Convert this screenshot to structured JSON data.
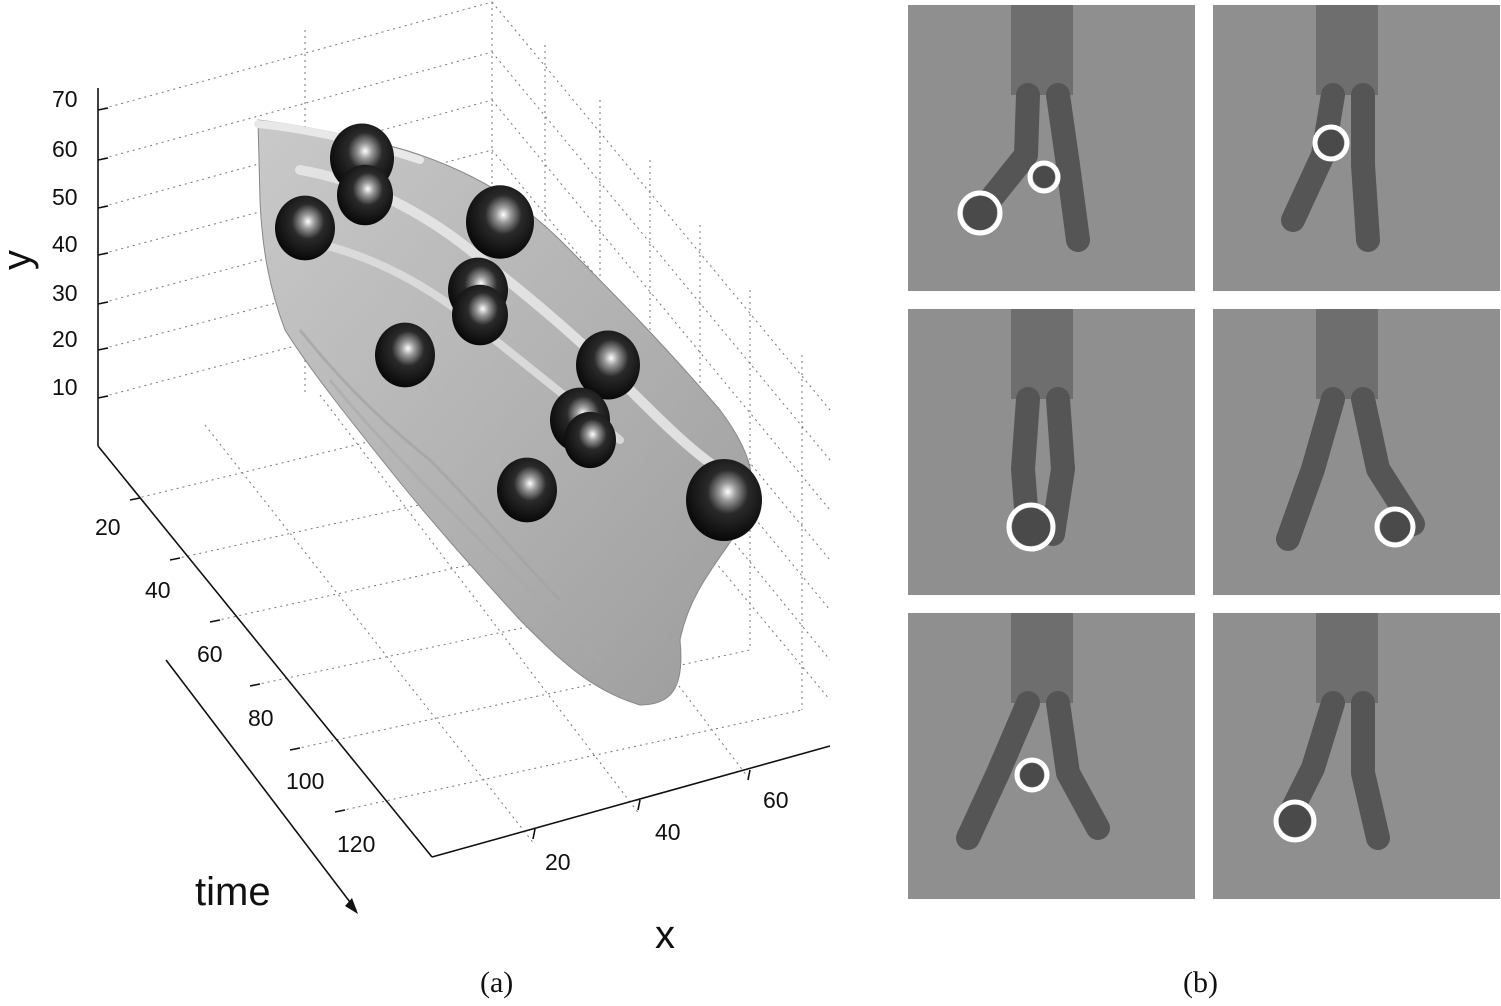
{
  "chart_data": {
    "type": "surface3d",
    "panel_a": {
      "axes": {
        "y": {
          "label": "y",
          "ticks": [
            "10",
            "20",
            "30",
            "40",
            "50",
            "60",
            "70"
          ]
        },
        "time": {
          "label": "time",
          "ticks": [
            "20",
            "40",
            "60",
            "80",
            "100",
            "120"
          ]
        },
        "x": {
          "label": "x",
          "ticks": [
            "20",
            "40",
            "60"
          ]
        }
      },
      "grid": true,
      "surface_color": "#b8b8b8",
      "marker_color": "#141414",
      "marker_count": 12
    },
    "panel_b": {
      "frames": [
        {
          "circles": 2
        },
        {
          "circles": 1
        },
        {
          "circles": 1
        },
        {
          "circles": 1
        },
        {
          "circles": 1
        },
        {
          "circles": 1
        }
      ],
      "circle_color": "#ffffff"
    }
  },
  "captions": {
    "a": "(a)",
    "b": "(b)"
  }
}
